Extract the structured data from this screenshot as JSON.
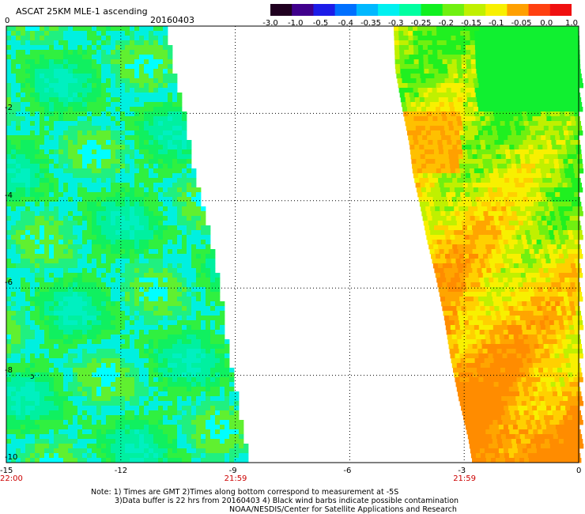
{
  "header": {
    "title": "ASCAT 25KM MLE-1 ascending",
    "date": "20160403"
  },
  "colorbar": {
    "labels": [
      "-3.0",
      "-1.0",
      "-0.5",
      "-0.4",
      "-0.35",
      "-0.3",
      "-0.25",
      "-0.2",
      "-0.15",
      "-0.1",
      "-0.05",
      "0.0",
      "1.0"
    ],
    "colors": [
      "#200020",
      "#40008c",
      "#1c1ce8",
      "#0070ff",
      "#00b8ff",
      "#00f0f0",
      "#00ffa0",
      "#10f020",
      "#70f010",
      "#c0f000",
      "#f8f000",
      "#ffa000",
      "#ff4010",
      "#f01010"
    ]
  },
  "axes": {
    "x_ticks": [
      "-15",
      "-12",
      "-9",
      "-6",
      "-3",
      "0"
    ],
    "y_ticks": [
      "0",
      "-2",
      "-4",
      "-6",
      "-8",
      "-10"
    ],
    "x_range": [
      -15,
      0
    ],
    "y_range": [
      -10,
      0
    ]
  },
  "time_labels": [
    {
      "lon": -15,
      "text": "22:00"
    },
    {
      "lon": -9,
      "text": "21:59"
    },
    {
      "lon": -3,
      "text": "21:59"
    }
  ],
  "notes": {
    "line1": "Note: 1) Times are GMT 2)Times along bottom correspond to measurement at -5S",
    "line2": "3)Data buffer is 22 hrs from 20160403 4) Black wind barbs indicate possible contamination",
    "line3": "NOAA/NESDIS/Center for Satellite Applications and Research"
  },
  "legend_colors": {
    "frame": "#000000",
    "grid": "#000000",
    "time_label": "#cc0000"
  }
}
